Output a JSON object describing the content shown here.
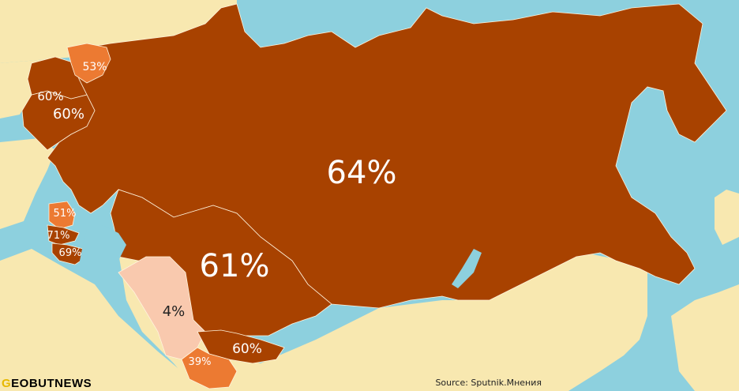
{
  "colors": {
    "sea": "#8dd0de",
    "land": "#f8e8b0",
    "dark_share": "#a84200",
    "mid_share": "#ec7a32",
    "low_share": "#f9c9ae",
    "borders": "#fff3dc"
  },
  "regions": [
    {
      "id": "russia",
      "label": "64%",
      "value": 64,
      "fill": "dark_share"
    },
    {
      "id": "kazakhstan",
      "label": "61%",
      "value": 61,
      "fill": "dark_share"
    },
    {
      "id": "belarus",
      "label": "60%",
      "value": 60,
      "fill": "dark_share"
    },
    {
      "id": "ukraine",
      "label": "60%",
      "value": 60,
      "fill": "dark_share"
    },
    {
      "id": "estonia",
      "label": "53%",
      "value": 53,
      "fill": "mid_share"
    },
    {
      "id": "armenia",
      "label": "51%",
      "value": 51,
      "fill": "mid_share"
    },
    {
      "id": "georgia",
      "label": "71%",
      "value": 71,
      "fill": "dark_share"
    },
    {
      "id": "azerbaijan",
      "label": "69%",
      "value": 69,
      "fill": "dark_share"
    },
    {
      "id": "uzbekistan",
      "label": "4%",
      "value": 4,
      "fill": "low_share"
    },
    {
      "id": "kyrgyzstan",
      "label": "60%",
      "value": 60,
      "fill": "dark_share"
    },
    {
      "id": "tajikistan",
      "label": "39%",
      "value": 39,
      "fill": "mid_share"
    }
  ],
  "logo": {
    "first_letter": "G",
    "rest": "EOBUTNEWS"
  },
  "source": "Source: Sputnik.Мнения"
}
